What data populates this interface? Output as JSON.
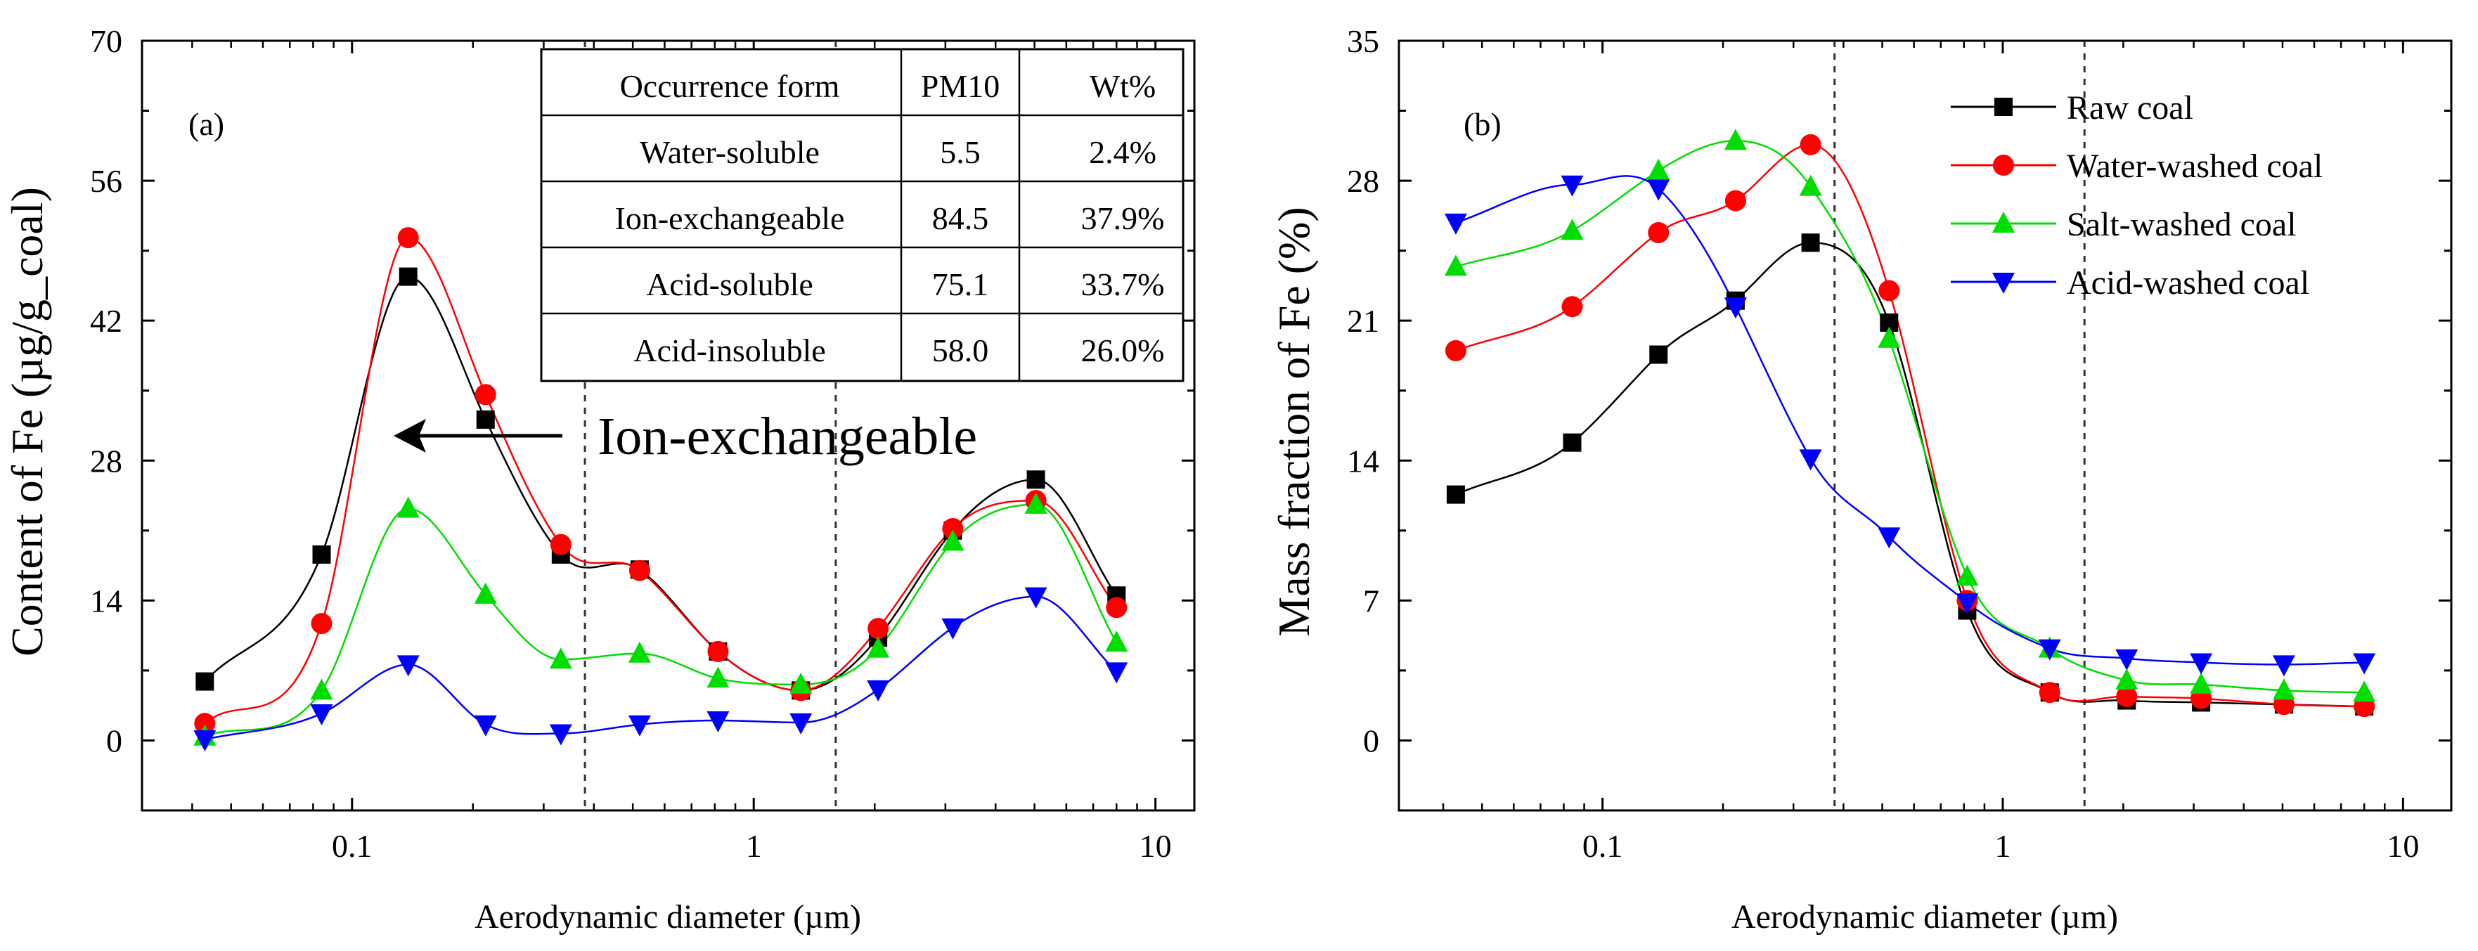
{
  "figure": {
    "shared_xlabel": "Aerodynamic diameter (µm)"
  },
  "chart_data": [
    {
      "id": "a",
      "type": "line",
      "panel_label": "(a)",
      "xscale": "log",
      "xlim": [
        0.03,
        12.5
      ],
      "ylim": [
        -7,
        70
      ],
      "xlabel": "Aerodynamic diameter (µm)",
      "ylabel": "Content of Fe (µg/g_coal)",
      "xticks": [
        {
          "value": 0.1,
          "label": "0.1"
        },
        {
          "value": 1,
          "label": "1"
        },
        {
          "value": 10,
          "label": "10"
        }
      ],
      "yticks": [
        {
          "value": 0,
          "label": "0"
        },
        {
          "value": 14,
          "label": "14"
        },
        {
          "value": 28,
          "label": "28"
        },
        {
          "value": 42,
          "label": "42"
        },
        {
          "value": 56,
          "label": "56"
        },
        {
          "value": 70,
          "label": "70"
        }
      ],
      "vlines": [
        0.38,
        1.6
      ],
      "x": [
        0.043,
        0.084,
        0.138,
        0.215,
        0.331,
        0.52,
        0.815,
        1.31,
        2.04,
        3.13,
        5.04,
        8.0
      ],
      "series": [
        {
          "name": "Raw coal",
          "color": "#000000",
          "marker": "square",
          "values": [
            5.9,
            18.6,
            46.4,
            32.1,
            18.6,
            17.1,
            8.9,
            5.0,
            10.3,
            21.0,
            26.1,
            14.5
          ]
        },
        {
          "name": "Water-washed coal",
          "color": "#ff0000",
          "marker": "circle",
          "values": [
            1.7,
            11.7,
            50.3,
            34.6,
            19.6,
            17.0,
            8.9,
            5.0,
            11.2,
            21.2,
            24.0,
            13.3
          ]
        },
        {
          "name": "Salt-washed coal",
          "color": "#00dd00",
          "marker": "triangle-up",
          "values": [
            0.4,
            5.0,
            23.2,
            14.6,
            8.1,
            8.7,
            6.2,
            5.6,
            9.2,
            19.9,
            23.6,
            9.8
          ]
        },
        {
          "name": "Acid-washed coal",
          "color": "#0000ff",
          "marker": "triangle-down",
          "values": [
            0.1,
            2.7,
            7.6,
            1.6,
            0.7,
            1.6,
            2.0,
            1.8,
            5.1,
            11.3,
            14.4,
            6.9
          ]
        }
      ],
      "annotations": [
        {
          "text": "Ion-exchangeable",
          "x": 0.185,
          "y": 28.5,
          "arrow_to": [
            0.135,
            30.5
          ]
        }
      ],
      "table": {
        "columns": [
          "Occurrence form",
          "PM10",
          "Wt%"
        ],
        "rows": [
          [
            "Water-soluble",
            "5.5",
            "2.4%"
          ],
          [
            "Ion-exchangeable",
            "84.5",
            "37.9%"
          ],
          [
            "Acid-soluble",
            "75.1",
            "33.7%"
          ],
          [
            "Acid-insoluble",
            "58.0",
            "26.0%"
          ]
        ]
      }
    },
    {
      "id": "b",
      "type": "line",
      "panel_label": "(b)",
      "xscale": "log",
      "xlim": [
        0.031,
        13.2
      ],
      "ylim": [
        -3.5,
        35
      ],
      "xlabel": "Aerodynamic diameter (µm)",
      "ylabel": "Mass fraction of Fe (%)",
      "xticks": [
        {
          "value": 0.1,
          "label": "0.1"
        },
        {
          "value": 1,
          "label": "1"
        },
        {
          "value": 10,
          "label": "10"
        }
      ],
      "yticks": [
        {
          "value": 0,
          "label": "0"
        },
        {
          "value": 7,
          "label": "7"
        },
        {
          "value": 14,
          "label": "14"
        },
        {
          "value": 21,
          "label": "21"
        },
        {
          "value": 28,
          "label": "28"
        },
        {
          "value": 35,
          "label": "35"
        }
      ],
      "vlines": [
        0.38,
        1.6
      ],
      "x": [
        0.043,
        0.084,
        0.138,
        0.215,
        0.331,
        0.52,
        0.815,
        1.31,
        2.04,
        3.13,
        5.04,
        8.0
      ],
      "series": [
        {
          "name": "Raw coal",
          "color": "#000000",
          "marker": "square",
          "values": [
            12.3,
            14.9,
            19.3,
            22.0,
            24.9,
            20.9,
            6.5,
            2.4,
            2.0,
            1.9,
            1.8,
            1.7
          ]
        },
        {
          "name": "Water-washed coal",
          "color": "#ff0000",
          "marker": "circle",
          "values": [
            19.5,
            21.7,
            25.4,
            27.0,
            29.8,
            22.5,
            7.0,
            2.4,
            2.2,
            2.1,
            1.8,
            1.7
          ]
        },
        {
          "name": "Salt-washed coal",
          "color": "#00dd00",
          "marker": "triangle-up",
          "values": [
            23.7,
            25.5,
            28.5,
            30.0,
            27.7,
            20.1,
            8.2,
            4.6,
            3.0,
            2.8,
            2.5,
            2.4
          ]
        },
        {
          "name": "Acid-washed coal",
          "color": "#0000ff",
          "marker": "triangle-down",
          "values": [
            25.9,
            27.8,
            27.6,
            21.7,
            14.1,
            10.2,
            6.9,
            4.6,
            4.1,
            3.9,
            3.8,
            3.9
          ]
        }
      ],
      "legend": {
        "position": "top-right",
        "entries": [
          "Raw coal",
          "Water-washed coal",
          "Salt-washed coal",
          "Acid-washed coal"
        ]
      }
    }
  ]
}
